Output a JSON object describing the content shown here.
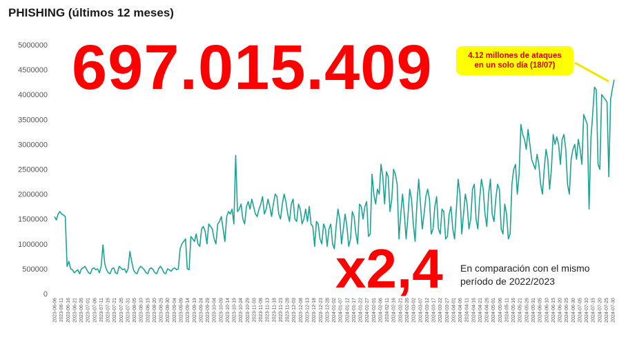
{
  "page_title": "PHISHING (últimos 12 meses)",
  "big_total": "697.015.409",
  "multiplier": "x2,4",
  "comparison": {
    "line1": "En comparación con el mismo",
    "line2": "período de 2022/2023"
  },
  "callout": {
    "line1": "4.12 millones de ataques",
    "line2": "en un solo día  (18/07)"
  },
  "colors": {
    "line": "#1aa394",
    "highlight": "#ff0000",
    "callout_bg": "#ffff00"
  },
  "chart_data": {
    "type": "line",
    "title": "PHISHING (últimos 12 meses)",
    "xlabel": "",
    "ylabel": "",
    "ylim": [
      0,
      5000000
    ],
    "yticks": [
      "0",
      "500000",
      "1000000",
      "1500000",
      "2000000",
      "2500000",
      "3000000",
      "3500000",
      "4000000",
      "4500000",
      "5000000"
    ],
    "xticks": [
      "2023-06-06",
      "2023-06-11",
      "2023-06-16",
      "2023-06-21",
      "2023-06-26",
      "2023-07-01",
      "2023-07-06",
      "2023-07-11",
      "2023-07-16",
      "2023-07-21",
      "2023-07-26",
      "2023-07-31",
      "2023-08-05",
      "2023-08-10",
      "2023-08-15",
      "2023-08-20",
      "2023-08-25",
      "2023-08-30",
      "2023-09-04",
      "2023-09-09",
      "2023-09-14",
      "2023-09-19",
      "2023-09-24",
      "2023-09-29",
      "2023-10-04",
      "2023-10-09",
      "2023-10-14",
      "2023-10-19",
      "2023-10-24",
      "2023-10-29",
      "2023-11-03",
      "2023-11-08",
      "2023-11-13",
      "2023-11-18",
      "2023-11-23",
      "2023-11-28",
      "2023-12-03",
      "2023-12-08",
      "2023-12-13",
      "2023-12-18",
      "2023-12-23",
      "2023-12-28",
      "2024-01-02",
      "2024-01-07",
      "2024-01-12",
      "2024-01-17",
      "2024-01-22",
      "2024-01-27",
      "2024-02-01",
      "2024-02-06",
      "2024-02-11",
      "2024-02-16",
      "2024-02-21",
      "2024-02-26",
      "2024-03-02",
      "2024-03-07",
      "2024-03-12",
      "2024-03-17",
      "2024-03-22",
      "2024-03-27",
      "2024-04-01",
      "2024-04-06",
      "2024-04-11",
      "2024-04-16",
      "2024-04-21",
      "2024-04-26",
      "2024-05-01",
      "2024-05-06",
      "2024-05-11",
      "2024-05-16",
      "2024-05-21",
      "2024-05-26",
      "2024-05-31",
      "2024-06-05",
      "2024-06-10",
      "2024-06-15",
      "2024-06-20",
      "2024-06-25",
      "2024-06-30",
      "2024-07-05",
      "2024-07-10",
      "2024-07-15",
      "2024-07-20",
      "2024-07-25",
      "2024-07-30"
    ],
    "grid": false,
    "series": [
      {
        "x_start": "2023-06-06",
        "x_end": "2024-07-31",
        "values": [
          1550000,
          1480000,
          1600000,
          1650000,
          1600000,
          1580000,
          1550000,
          550000,
          650000,
          500000,
          480000,
          420000,
          450000,
          480000,
          400000,
          500000,
          520000,
          550000,
          480000,
          420000,
          400000,
          500000,
          520000,
          480000,
          500000,
          420000,
          550000,
          980000,
          600000,
          480000,
          420000,
          400000,
          500000,
          520000,
          420000,
          400000,
          550000,
          520000,
          480000,
          500000,
          420000,
          500000,
          850000,
          650000,
          480000,
          420000,
          400000,
          500000,
          550000,
          520000,
          480000,
          420000,
          400000,
          500000,
          520000,
          480000,
          420000,
          400000,
          500000,
          550000,
          500000,
          420000,
          400000,
          500000,
          480000,
          450000,
          500000,
          520000,
          480000,
          500000,
          900000,
          1000000,
          1050000,
          1100000,
          500000,
          480000,
          1150000,
          1100000,
          1050000,
          1200000,
          1000000,
          950000,
          1300000,
          1350000,
          1250000,
          1000000,
          1400000,
          1350000,
          1300000,
          1100000,
          1000000,
          1400000,
          1450000,
          1550000,
          1300000,
          1050000,
          1550000,
          1650000,
          1600000,
          1700000,
          1400000,
          2780000,
          1650000,
          1700000,
          1800000,
          1500000,
          1400000,
          1750000,
          1850000,
          1700000,
          1900000,
          1750000,
          1600000,
          1550000,
          1700000,
          1800000,
          1950000,
          1600000,
          1700000,
          1900000,
          1750000,
          1550000,
          1800000,
          2000000,
          1950000,
          1600000,
          1500000,
          1800000,
          2000000,
          1850000,
          1600000,
          1450000,
          1800000,
          1900000,
          1500000,
          1450000,
          1800000,
          1700000,
          1400000,
          1500000,
          1700000,
          1450000,
          1750000,
          1400000,
          1350000,
          950000,
          1450000,
          1400000,
          1100000,
          1000000,
          1400000,
          1300000,
          950000,
          1300000,
          1400000,
          1000000,
          900000,
          1350000,
          1700000,
          1500000,
          1000000,
          1300000,
          1600000,
          1350000,
          950000,
          1100000,
          1650000,
          1550000,
          1200000,
          1000000,
          1800000,
          1750000,
          1500000,
          1750000,
          1850000,
          1150000,
          1200000,
          2400000,
          2000000,
          1800000,
          2100000,
          2000000,
          2600000,
          2350000,
          1800000,
          2450000,
          2350000,
          1650000,
          1900000,
          2500000,
          2400000,
          2200000,
          1100000,
          1600000,
          2000000,
          1600000,
          1100000,
          1550000,
          2100000,
          1900000,
          1400000,
          1050000,
          1800000,
          2300000,
          1800000,
          1300000,
          1600000,
          1950000,
          2100000,
          1900000,
          1200000,
          1300000,
          1750000,
          1950000,
          1300000,
          1200000,
          1700000,
          1650000,
          1100000,
          1150000,
          1600000,
          1750000,
          1300000,
          1100000,
          1700000,
          2300000,
          2000000,
          1200000,
          1600000,
          2000000,
          1800000,
          1300000,
          1500000,
          2100000,
          2200000,
          1500000,
          1300000,
          1900000,
          2300000,
          2100000,
          1600000,
          1350000,
          2000000,
          2300000,
          1600000,
          1450000,
          1900000,
          2200000,
          2100000,
          1300000,
          1200000,
          1800000,
          1600000,
          1100000,
          1200000,
          2200000,
          2500000,
          2600000,
          2000000,
          2400000,
          3400000,
          3200000,
          3100000,
          2900000,
          3300000,
          3000000,
          2700000,
          2600000,
          2500000,
          2800000,
          2600000,
          2200000,
          2000000,
          2500000,
          2900000,
          2700000,
          2100000,
          2500000,
          3200000,
          3000000,
          3150000,
          3000000,
          2600000,
          3100000,
          3200000,
          2900000,
          2200000,
          2000000,
          2700000,
          2900000,
          3000000,
          2700000,
          3100000,
          2900000,
          2600000,
          3600000,
          3500000,
          3400000,
          1700000,
          3100000,
          3600000,
          4150000,
          4100000,
          2600000,
          2500000,
          4000000,
          3950000,
          3900000,
          3850000,
          2350000,
          3900000,
          4120000,
          4300000
        ]
      }
    ]
  }
}
